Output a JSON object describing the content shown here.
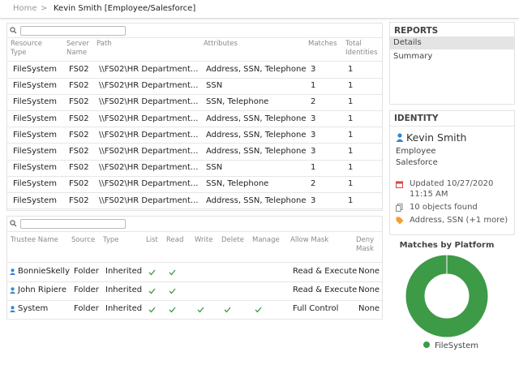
{
  "breadcrumb": {
    "home": "Home",
    "separator": ">",
    "current": "Kevin Smith [Employee/Salesforce]"
  },
  "files_table": {
    "columns": [
      "Resource Type",
      "Server Name",
      "Path",
      "Attributes",
      "Matches",
      "Total Identities"
    ],
    "rows": [
      [
        "FileSystem",
        "FS02",
        "\\\\FS02\\HR Department...",
        "Address, SSN, Telephone",
        "3",
        "1"
      ],
      [
        "FileSystem",
        "FS02",
        "\\\\FS02\\HR Department...",
        "SSN",
        "1",
        "1"
      ],
      [
        "FileSystem",
        "FS02",
        "\\\\FS02\\HR Department...",
        "SSN, Telephone",
        "2",
        "1"
      ],
      [
        "FileSystem",
        "FS02",
        "\\\\FS02\\HR Department...",
        "Address, SSN, Telephone",
        "3",
        "1"
      ],
      [
        "FileSystem",
        "FS02",
        "\\\\FS02\\HR Department...",
        "Address, SSN, Telephone",
        "3",
        "1"
      ],
      [
        "FileSystem",
        "FS02",
        "\\\\FS02\\HR Department...",
        "Address, SSN, Telephone",
        "3",
        "1"
      ],
      [
        "FileSystem",
        "FS02",
        "\\\\FS02\\HR Department...",
        "SSN",
        "1",
        "1"
      ],
      [
        "FileSystem",
        "FS02",
        "\\\\FS02\\HR Department...",
        "SSN, Telephone",
        "2",
        "1"
      ],
      [
        "FileSystem",
        "FS02",
        "\\\\FS02\\HR Department...",
        "Address, SSN, Telephone",
        "3",
        "1"
      ]
    ]
  },
  "permissions_table": {
    "columns": [
      "Trustee Name",
      "Source",
      "Type",
      "List",
      "Read",
      "Write",
      "Delete",
      "Manage",
      "Allow Mask",
      "Deny Mask"
    ],
    "rows": [
      {
        "trustee": "BonnieSkelly",
        "source": "Folder",
        "type": "Inherited",
        "list": true,
        "read": true,
        "write": false,
        "delete": false,
        "manage": false,
        "allow_mask": "Read & Execute",
        "deny_mask": "None"
      },
      {
        "trustee": "John Ripiere",
        "source": "Folder",
        "type": "Inherited",
        "list": true,
        "read": true,
        "write": false,
        "delete": false,
        "manage": false,
        "allow_mask": "Read & Execute",
        "deny_mask": "None"
      },
      {
        "trustee": "System",
        "source": "Folder",
        "type": "Inherited",
        "list": true,
        "read": true,
        "write": true,
        "delete": true,
        "manage": true,
        "allow_mask": "Full Control",
        "deny_mask": "None"
      }
    ]
  },
  "reports": {
    "title": "REPORTS",
    "items": [
      "Details",
      "Summary"
    ]
  },
  "identity": {
    "title": "IDENTITY",
    "name": "Kevin Smith",
    "role": "Employee",
    "source": "Salesforce",
    "updated": [
      "Updated 10/27/2020",
      "11:15 AM"
    ],
    "objects": "10 objects found",
    "attributes": "Address, SSN (+1 more)"
  },
  "platform_chart": {
    "type": "pie",
    "title": "Matches by Platform",
    "categories": [
      "FileSystem"
    ],
    "values": [
      100
    ],
    "colors": [
      "#3d9a46"
    ]
  }
}
